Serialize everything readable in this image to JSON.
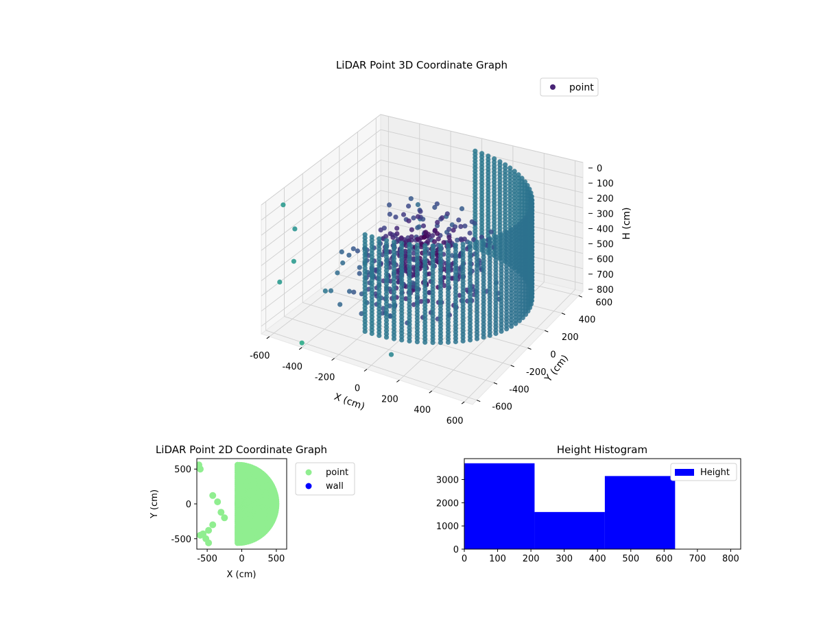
{
  "chart_data": [
    {
      "type": "scatter",
      "projection": "3d",
      "title": "LiDAR Point 3D Coordinate Graph",
      "xlabel": "X (cm)",
      "ylabel": "Y (cm)",
      "zlabel": "H (cm)",
      "xlim": [
        -650,
        650
      ],
      "ylim": [
        -650,
        650
      ],
      "zlim": [
        850,
        0
      ],
      "x_ticks": [
        -600,
        -400,
        -200,
        0,
        200,
        400,
        600
      ],
      "y_ticks": [
        -600,
        -400,
        -200,
        0,
        200,
        400,
        600
      ],
      "z_ticks": [
        0,
        100,
        200,
        300,
        400,
        500,
        600,
        700,
        800
      ],
      "legend": [
        {
          "label": "point",
          "color": "#482475"
        }
      ],
      "legend_position": "upper-right",
      "colormap": "viridis",
      "grid": true,
      "series": [
        {
          "name": "point",
          "description_points": "cylindrical wall of radius ~600 cm spanning angles -90..90 deg, heights 0..650 cm, plus scattered interior returns",
          "wall_radius": 600,
          "wall_height_range": [
            0,
            650
          ],
          "outliers": [
            {
              "x": -600,
              "y": -500,
              "z": 50
            },
            {
              "x": -500,
              "y": -550,
              "z": 150
            },
            {
              "x": -450,
              "y": -650,
              "z": 300
            },
            {
              "x": -650,
              "y": -450,
              "z": 600
            },
            {
              "x": -400,
              "y": -650,
              "z": 820
            },
            {
              "x": 150,
              "y": -650,
              "z": 700
            }
          ]
        }
      ]
    },
    {
      "type": "scatter",
      "title": "LiDAR Point 2D Coordinate Graph",
      "xlabel": "X (cm)",
      "ylabel": "Y (cm)",
      "xlim": [
        -650,
        650
      ],
      "ylim": [
        -650,
        650
      ],
      "x_ticks": [
        -500,
        0,
        500
      ],
      "y_ticks": [
        -500,
        0,
        500
      ],
      "legend": [
        {
          "label": "point",
          "color": "#90ee90"
        },
        {
          "label": "wall",
          "color": "#0000ff"
        }
      ],
      "legend_position": "outside-right"
    },
    {
      "type": "bar",
      "title": "Height Histogram",
      "xlabel": "",
      "ylabel": "",
      "bin_edges": [
        0,
        211,
        422,
        633
      ],
      "values": [
        3700,
        1600,
        3150
      ],
      "xlim": [
        0,
        830
      ],
      "ylim": [
        0,
        3900
      ],
      "x_ticks": [
        0,
        100,
        200,
        300,
        400,
        500,
        600,
        700,
        800
      ],
      "y_ticks": [
        0,
        1000,
        2000,
        3000
      ],
      "legend": [
        {
          "label": "Height",
          "color": "#0000ff"
        }
      ],
      "legend_position": "upper-right",
      "color": "#0000ff"
    }
  ]
}
